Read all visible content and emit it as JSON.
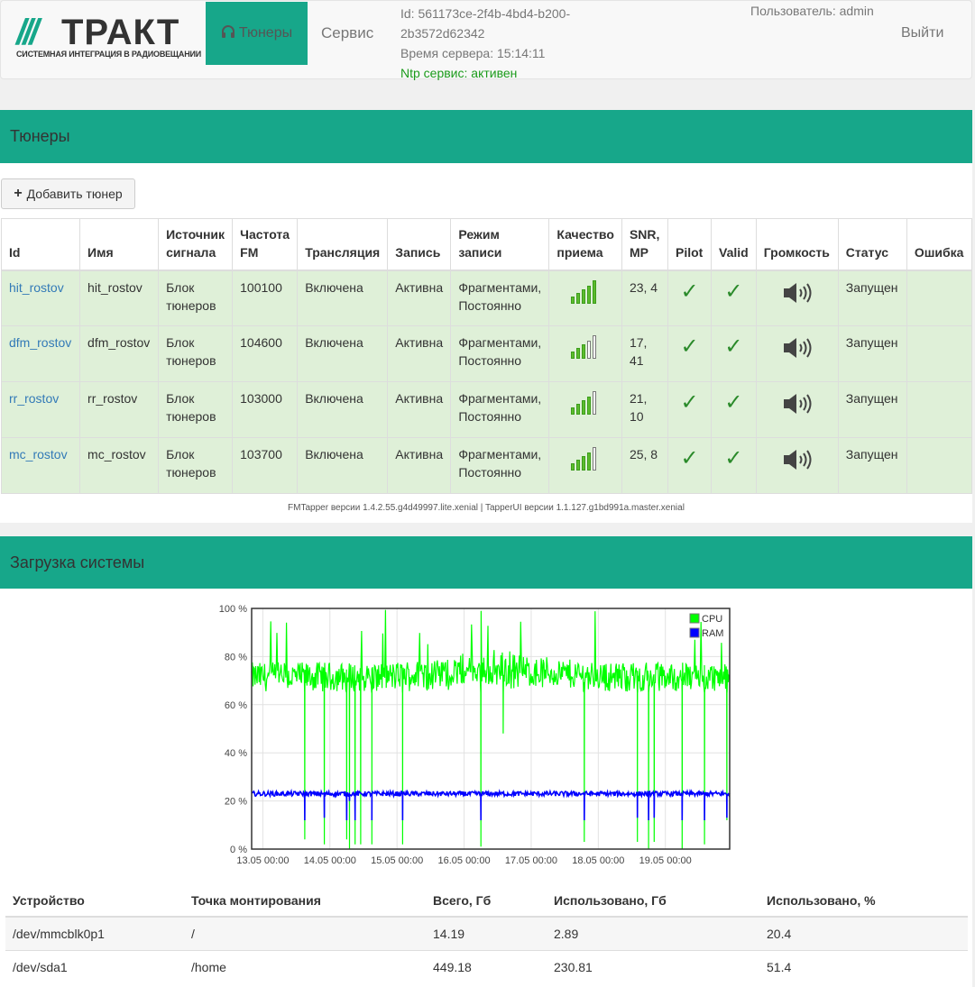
{
  "header": {
    "logo_mark": "///",
    "logo_word": "ТРАКТ",
    "logo_tagline": "СИСТЕМНАЯ ИНТЕГРАЦИЯ В РАДИОВЕЩАНИИ",
    "nav_tuners": "Тюнеры",
    "nav_service": "Сервис",
    "id_line1": "Id: 561173ce-2f4b-4bd4-b200-",
    "id_line2": "2b3572d62342",
    "server_time": "Время сервера: 15:14:11",
    "ntp_status": "Ntp сервис: активен",
    "user": "Пользователь: admin",
    "logout": "Выйти"
  },
  "tuners_panel": {
    "title": "Тюнеры",
    "add_button": "Добавить тюнер",
    "columns": [
      "Id",
      "Имя",
      "Источник сигнала",
      "Частота FM",
      "Трансляция",
      "Запись",
      "Режим записи",
      "Качество приема",
      "SNR, MP",
      "Pilot",
      "Valid",
      "Громкость",
      "Статус",
      "Ошибка"
    ],
    "rows": [
      {
        "id": "hit_rostov",
        "name": "hit_rostov",
        "source": "Блок тюнеров",
        "freq": "100100",
        "broadcast": "Включена",
        "record": "Активна",
        "mode": "Фрагментами, Постоянно",
        "quality": 5,
        "snr": "23, 4",
        "pilot": "✓",
        "valid": "✓",
        "status": "Запущен",
        "error": ""
      },
      {
        "id": "dfm_rostov",
        "name": "dfm_rostov",
        "source": "Блок тюнеров",
        "freq": "104600",
        "broadcast": "Включена",
        "record": "Активна",
        "mode": "Фрагментами, Постоянно",
        "quality": 3,
        "snr": "17, 41",
        "pilot": "✓",
        "valid": "✓",
        "status": "Запущен",
        "error": ""
      },
      {
        "id": "rr_rostov",
        "name": "rr_rostov",
        "source": "Блок тюнеров",
        "freq": "103000",
        "broadcast": "Включена",
        "record": "Активна",
        "mode": "Фрагментами, Постоянно",
        "quality": 4,
        "snr": "21, 10",
        "pilot": "✓",
        "valid": "✓",
        "status": "Запущен",
        "error": ""
      },
      {
        "id": "mc_rostov",
        "name": "mc_rostov",
        "source": "Блок тюнеров",
        "freq": "103700",
        "broadcast": "Включена",
        "record": "Активна",
        "mode": "Фрагментами, Постоянно",
        "quality": 4,
        "snr": "25, 8",
        "pilot": "✓",
        "valid": "✓",
        "status": "Запущен",
        "error": ""
      }
    ],
    "versions": "FMTapper версии 1.4.2.55.g4d49997.lite.xenial | TapperUI версии 1.1.127.g1bd991a.master.xenial"
  },
  "load_panel": {
    "title": "Загрузка системы"
  },
  "chart_data": {
    "type": "line",
    "title": "",
    "xlabel": "",
    "ylabel": "",
    "ylim": [
      0,
      100
    ],
    "y_ticks": [
      "0 %",
      "20 %",
      "40 %",
      "60 %",
      "80 %",
      "100 %"
    ],
    "x_ticks": [
      "13.05 00:00",
      "14.05 00:00",
      "15.05 00:00",
      "16.05 00:00",
      "17.05 00:00",
      "18.05 00:00",
      "19.05 00:00"
    ],
    "x_range": [
      "12.05 20:00",
      "19.05 23:00"
    ],
    "legend_position": "top-right",
    "grid": true,
    "series": [
      {
        "name": "CPU",
        "color": "#00ff00",
        "typical_range": [
          60,
          82
        ],
        "spikes_to": 100,
        "dips": [
          {
            "at": "13.05 15:00",
            "to": 4
          },
          {
            "at": "13.05 22:00",
            "to": 2
          },
          {
            "at": "14.05 06:00",
            "to": 4
          },
          {
            "at": "14.05 07:00",
            "to": 0
          },
          {
            "at": "14.05 09:00",
            "to": 2
          },
          {
            "at": "14.05 11:00",
            "to": 2
          },
          {
            "at": "14.05 15:00",
            "to": 2
          },
          {
            "at": "15.05 02:00",
            "to": 2
          },
          {
            "at": "16.05 06:00",
            "to": 1
          },
          {
            "at": "16.05 14:00",
            "to": 48
          },
          {
            "at": "17.05 19:00",
            "to": 3
          },
          {
            "at": "18.05 14:00",
            "to": 3
          },
          {
            "at": "18.05 18:00",
            "to": 0
          },
          {
            "at": "18.05 20:00",
            "to": 3
          },
          {
            "at": "19.05 06:00",
            "to": 0
          },
          {
            "at": "19.05 14:00",
            "to": 2
          },
          {
            "at": "19.05 22:00",
            "to": 12
          }
        ]
      },
      {
        "name": "RAM",
        "color": "#0000ff",
        "typical_range": [
          22,
          24
        ],
        "dips": [
          {
            "at": "13.05 15:00",
            "to": 12
          },
          {
            "at": "13.05 22:00",
            "to": 13
          },
          {
            "at": "14.05 06:00",
            "to": 12
          },
          {
            "at": "14.05 07:00",
            "to": 20
          },
          {
            "at": "14.05 09:00",
            "to": 12
          },
          {
            "at": "14.05 15:00",
            "to": 12
          },
          {
            "at": "15.05 02:00",
            "to": 12
          },
          {
            "at": "16.05 06:00",
            "to": 12
          },
          {
            "at": "17.05 19:00",
            "to": 12
          },
          {
            "at": "18.05 14:00",
            "to": 13
          },
          {
            "at": "18.05 18:00",
            "to": 12
          },
          {
            "at": "18.05 20:00",
            "to": 13
          },
          {
            "at": "19.05 06:00",
            "to": 12
          },
          {
            "at": "19.05 14:00",
            "to": 12
          },
          {
            "at": "19.05 22:00",
            "to": 13
          }
        ]
      }
    ]
  },
  "disks": {
    "columns": [
      "Устройство",
      "Точка монтирования",
      "Всего, Гб",
      "Использовано, Гб",
      "Использовано, %"
    ],
    "rows": [
      [
        "/dev/mmcblk0p1",
        "/",
        "14.19",
        "2.89",
        "20.4"
      ],
      [
        "/dev/sda1",
        "/home",
        "449.18",
        "230.81",
        "51.4"
      ]
    ]
  },
  "colors": {
    "accent": "#17a78a",
    "row_success": "#dff0d8",
    "link": "#337ab7",
    "ntp_ok": "#1a9a1a"
  }
}
